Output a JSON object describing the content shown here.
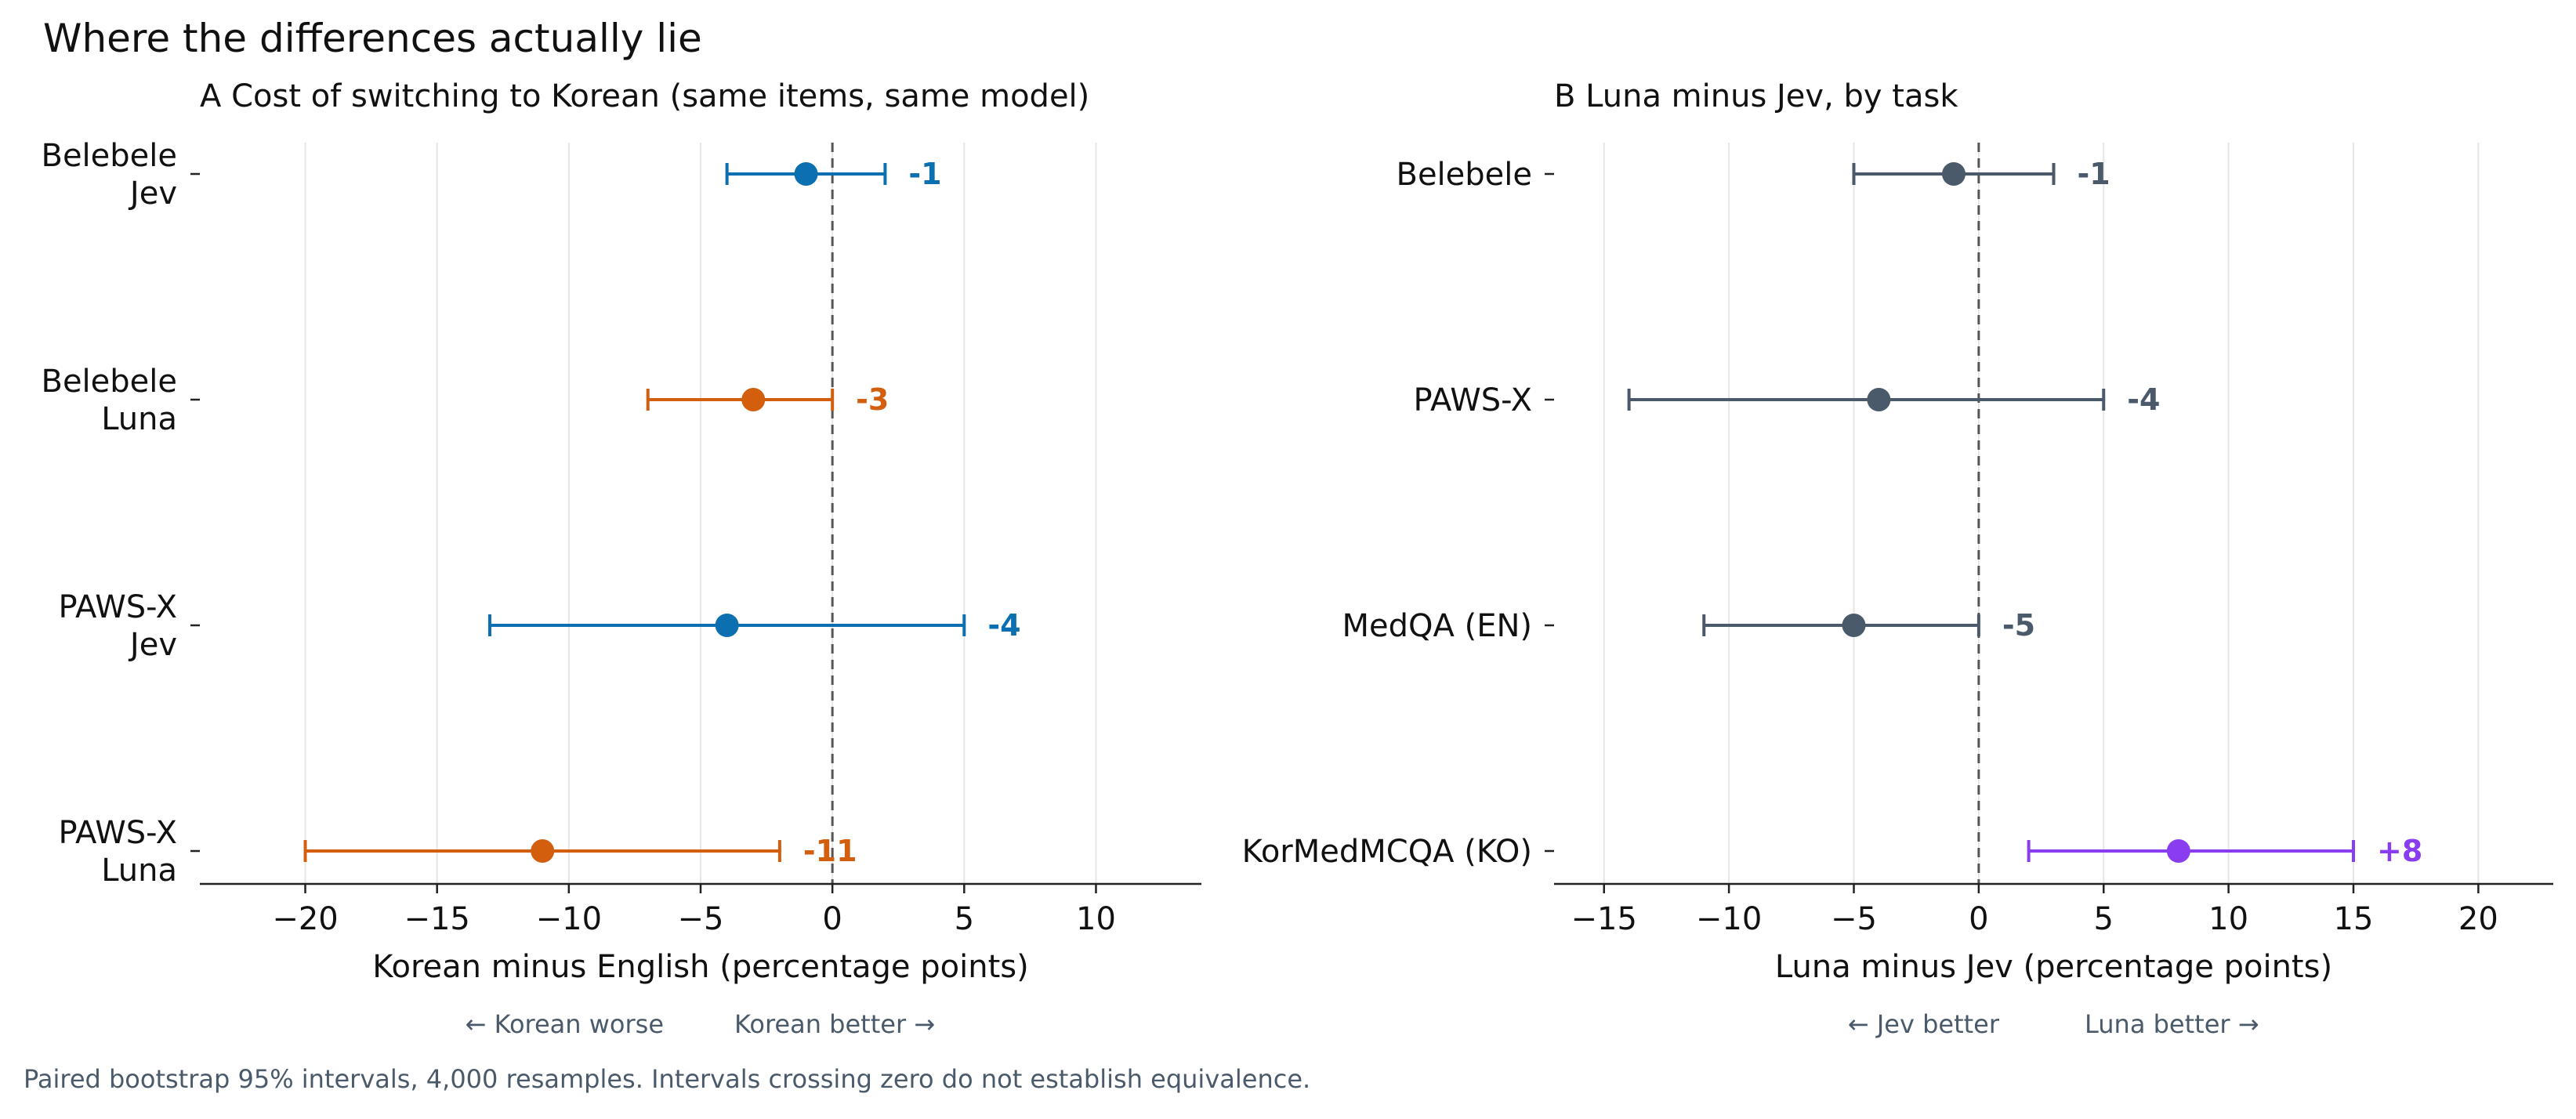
{
  "figure": {
    "title": "Where the differences actually lie",
    "footnote": "Paired bootstrap 95% intervals, 4,000 resamples. Intervals crossing zero do not establish equivalence."
  },
  "colors": {
    "jev": "#0b6fb0",
    "luna": "#d35f0e",
    "neutral": "#4a5a6a",
    "positive": "#8a3df0",
    "zero_line": "#555555",
    "grid": "#e6e6e6",
    "text": "#111111",
    "muted": "#4a5a6a"
  },
  "chart_data": [
    {
      "panel": "A",
      "type": "scatter",
      "title": "Cost of switching to Korean (same items, same model)",
      "xlabel": "Korean minus English (percentage points)",
      "direction_left": "← Korean worse",
      "direction_right": "Korean better →",
      "xlim": [
        -24,
        14
      ],
      "xticks": [
        -20,
        -15,
        -10,
        -5,
        0,
        5,
        10
      ],
      "xtick_labels": [
        "−20",
        "−15",
        "−10",
        "−5",
        "0",
        "5",
        "10"
      ],
      "grid": "vertical",
      "reference_line": 0,
      "points": [
        {
          "label": [
            "Belebele",
            "Jev"
          ],
          "value": -1,
          "lo": -4,
          "hi": 2,
          "value_label": "-1",
          "color": "jev"
        },
        {
          "label": [
            "Belebele",
            "Luna"
          ],
          "value": -3,
          "lo": -7,
          "hi": 0,
          "value_label": "-3",
          "color": "luna"
        },
        {
          "label": [
            "PAWS-X",
            "Jev"
          ],
          "value": -4,
          "lo": -13,
          "hi": 5,
          "value_label": "-4",
          "color": "jev"
        },
        {
          "label": [
            "PAWS-X",
            "Luna"
          ],
          "value": -11,
          "lo": -20,
          "hi": -2,
          "value_label": "-11",
          "color": "luna"
        }
      ]
    },
    {
      "panel": "B",
      "type": "scatter",
      "title": "Luna minus Jev, by task",
      "xlabel": "Luna minus Jev (percentage points)",
      "direction_left": "← Jev better",
      "direction_right": "Luna better →",
      "xlim": [
        -17,
        23
      ],
      "xticks": [
        -15,
        -10,
        -5,
        0,
        5,
        10,
        15,
        20
      ],
      "xtick_labels": [
        "−15",
        "−10",
        "−5",
        "0",
        "5",
        "10",
        "15",
        "20"
      ],
      "grid": "vertical",
      "reference_line": 0,
      "points": [
        {
          "label": [
            "Belebele"
          ],
          "value": -1,
          "lo": -5,
          "hi": 3,
          "value_label": "-1",
          "color": "neutral"
        },
        {
          "label": [
            "PAWS-X"
          ],
          "value": -4,
          "lo": -14,
          "hi": 5,
          "value_label": "-4",
          "color": "neutral"
        },
        {
          "label": [
            "MedQA (EN)"
          ],
          "value": -5,
          "lo": -11,
          "hi": 0,
          "value_label": "-5",
          "color": "neutral"
        },
        {
          "label": [
            "KorMedMCQA (KO)"
          ],
          "value": 8,
          "lo": 2,
          "hi": 15,
          "value_label": "+8",
          "color": "positive"
        }
      ]
    }
  ]
}
